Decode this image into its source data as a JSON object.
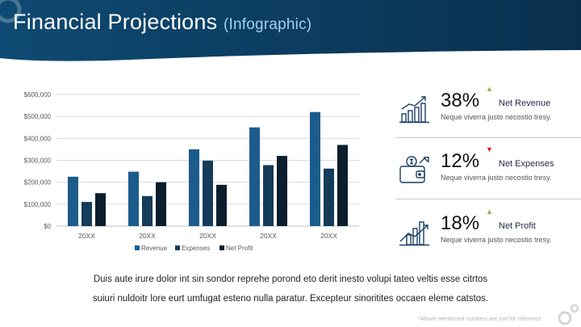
{
  "header": {
    "title": "Financial Projections",
    "subtitle": "(Infographic)"
  },
  "colors": {
    "revenue": "#1c5c8c",
    "expenses": "#143b5a",
    "net_profit": "#0b1e2e",
    "header_bg": "#0d3a5c",
    "up": "#7dbb4f",
    "down": "#e3151b"
  },
  "chart_data": {
    "type": "bar",
    "categories": [
      "20XX",
      "20XX",
      "20XX",
      "20XX",
      "20XX"
    ],
    "series": [
      {
        "name": "Revenue",
        "values": [
          225000,
          248000,
          350000,
          450000,
          520000
        ]
      },
      {
        "name": "Expenses",
        "values": [
          110000,
          137000,
          298000,
          278000,
          262000
        ]
      },
      {
        "name": "Net Profit",
        "values": [
          150000,
          200000,
          188000,
          320000,
          370000
        ]
      }
    ],
    "yticks": [
      "$0",
      "$100,000",
      "$200,000",
      "$300,000",
      "$400,000",
      "$500,000",
      "$600,000"
    ],
    "ylim": [
      0,
      600000
    ],
    "legend_position": "bottom",
    "grid": true
  },
  "kpis": [
    {
      "percent": "38%",
      "trend": "up",
      "label": "Net Revenue",
      "description": "Neque viverra justo necostio tresy.",
      "icon": "chart-growth-icon"
    },
    {
      "percent": "12%",
      "trend": "down",
      "label": "Net Expenses",
      "description": "Neque viverra justo necostio tresy.",
      "icon": "wallet-icon"
    },
    {
      "percent": "18%",
      "trend": "up",
      "label": "Net Profit",
      "description": "Neque viverra justo necostio tresy.",
      "icon": "profit-chart-icon"
    }
  ],
  "paragraph": {
    "line1": "Duis aute irure dolor int sin sondor reprehe porond eto derit inesto volupi tateo veltis esse citrtos",
    "line2": "suiuri nuldoitr lore eurt umfugat esteno nulla paratur. Excepteur sinoritites occaen eleme catstos."
  },
  "footnote": "*Above mentioned numbers are just for reference"
}
